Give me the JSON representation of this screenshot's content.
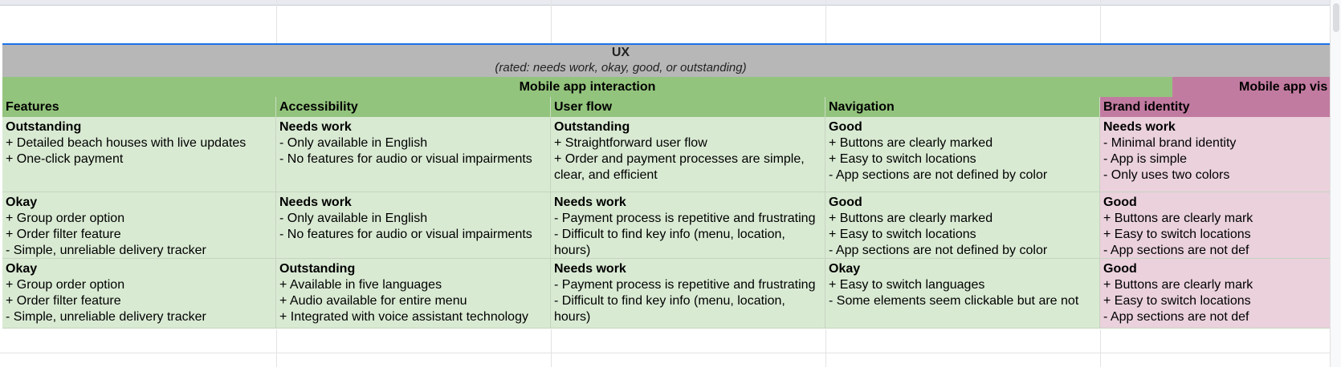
{
  "ux_band": {
    "title": "UX",
    "subtitle": "(rated: needs work, okay, good, or outstanding)"
  },
  "sections": [
    {
      "label": "Mobile app interaction",
      "color": "#93c47d"
    },
    {
      "label": "Mobile app vis",
      "color": "#c27ba0"
    }
  ],
  "columns": [
    {
      "label": "Features"
    },
    {
      "label": "Accessibility"
    },
    {
      "label": "User flow"
    },
    {
      "label": "Navigation"
    },
    {
      "label": "Brand identity"
    }
  ],
  "rows": [
    [
      {
        "rating": "Outstanding",
        "lines": [
          "+ Detailed beach houses with live updates",
          "+ One-click payment"
        ]
      },
      {
        "rating": "Needs work",
        "lines": [
          "- Only available in English",
          "- No features for audio or visual impairments"
        ]
      },
      {
        "rating": "Outstanding",
        "lines": [
          "+ Straightforward user flow",
          "+ Order and payment processes are simple, clear, and efficient"
        ]
      },
      {
        "rating": "Good",
        "lines": [
          "+ Buttons are clearly marked",
          "+ Easy to switch locations",
          "- App sections are not defined by color"
        ]
      },
      {
        "rating": "Needs work",
        "lines": [
          "- Minimal brand identity",
          "- App is simple",
          "- Only uses two colors"
        ]
      }
    ],
    [
      {
        "rating": "Okay",
        "lines": [
          "+ Group order option",
          "+ Order filter feature",
          "- Simple, unreliable delivery tracker"
        ]
      },
      {
        "rating": "Needs work",
        "lines": [
          "- Only available in English",
          "- No features for audio or visual impairments"
        ]
      },
      {
        "rating": "Needs work",
        "lines": [
          "- Payment process is repetitive and frustrating",
          "- Difficult to find key info (menu, location, hours)"
        ]
      },
      {
        "rating": "Good",
        "lines": [
          "+ Buttons are clearly marked",
          "+ Easy to switch locations",
          "- App sections are not defined by color"
        ]
      },
      {
        "rating": "Good",
        "lines": [
          "+ Buttons are clearly mark",
          "+ Easy to switch locations",
          "- App sections are not def"
        ]
      }
    ],
    [
      {
        "rating": "Okay",
        "lines": [
          "+ Group order option",
          "+ Order filter feature",
          "- Simple, unreliable delivery tracker"
        ]
      },
      {
        "rating": "Outstanding",
        "lines": [
          "+ Available in five languages",
          "+ Audio available for entire menu",
          "+ Integrated with voice assistant technology"
        ]
      },
      {
        "rating": "Needs work",
        "lines": [
          "- Payment process is repetitive and frustrating",
          "- Difficult to find key info (menu, location, hours)"
        ]
      },
      {
        "rating": "Okay",
        "lines": [
          "+ Easy to switch languages",
          "- Some elements seem clickable but are not"
        ]
      },
      {
        "rating": "Good",
        "lines": [
          "+ Buttons are clearly mark",
          "+ Easy to switch locations",
          "- App sections are not def"
        ]
      }
    ]
  ],
  "colors": {
    "ux_band": "#b7b7b7",
    "header_green": "#93c47d",
    "cell_green": "#d9ead3",
    "header_pink": "#c27ba0",
    "cell_pink": "#ead1dc",
    "selection_blue": "#1a73e8"
  }
}
